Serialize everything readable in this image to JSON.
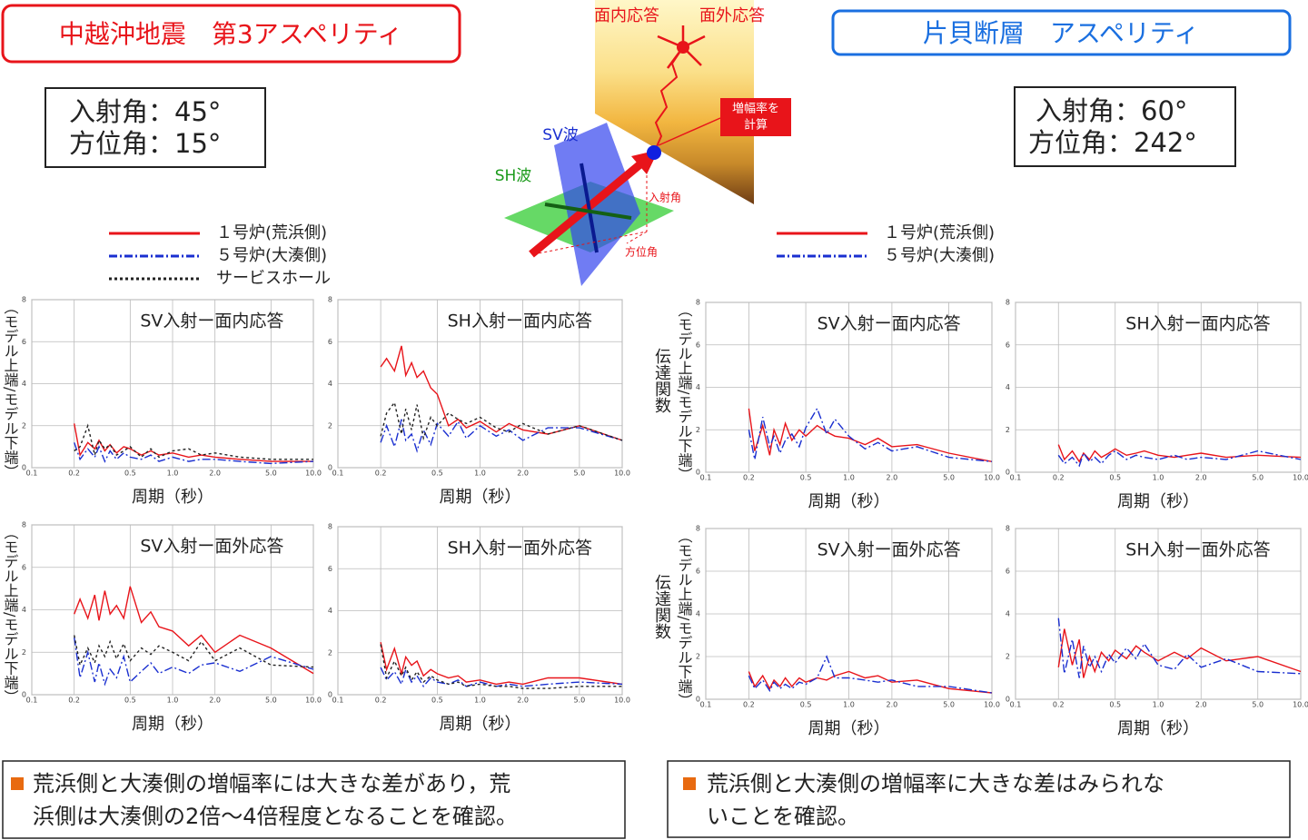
{
  "left": {
    "title": "中越沖地震　第3アスペリティ",
    "angles": [
      "入射角：45°",
      "方位角：15°"
    ],
    "legend": [
      {
        "name": "１号炉(荒浜側)",
        "color": "#e8141a",
        "style": "solid"
      },
      {
        "name": "５号炉(大湊側)",
        "color": "#1a2fd0",
        "style": "dashdot"
      },
      {
        "name": "サービスホール",
        "color": "#222222",
        "style": "dotted"
      }
    ],
    "note": [
      "荒浜側と大湊側の増幅率には大きな差があり，荒",
      "浜側は大湊側の2倍～4倍程度となることを確認。"
    ]
  },
  "right": {
    "title": "片貝断層　アスペリティ",
    "angles": [
      "入射角：60°",
      "方位角：242°"
    ],
    "legend": [
      {
        "name": "１号炉(荒浜側)",
        "color": "#e8141a",
        "style": "solid"
      },
      {
        "name": "５号炉(大湊側)",
        "color": "#1a2fd0",
        "style": "dashdot"
      }
    ],
    "note": [
      "荒浜側と大湊側の増幅率に大きな差はみられな",
      "いことを確認。"
    ]
  },
  "diagram": {
    "in_plane": "面内応答",
    "out_plane": "面外応答",
    "calc": [
      "増幅率を",
      "計算"
    ],
    "sv": "SV波",
    "sh": "SH波",
    "incidence": "入射角",
    "azimuth": "方位角"
  },
  "chart_data": [
    {
      "type": "line",
      "title": "SV入射ー面内応答",
      "xlabel": "周期（秒）",
      "ylabel": "（モデル上端/モデル下端）",
      "log_x": true,
      "grid": true,
      "xlim": [
        0.1,
        10
      ],
      "xticks": [
        0.1,
        0.2,
        0.5,
        {
          "value": 1,
          "label": "1.0"
        },
        {
          "value": 2,
          "label": "2.0"
        },
        {
          "value": 5,
          "label": "5.0"
        },
        {
          "value": 10,
          "label": "10.0"
        }
      ],
      "ylim": [
        0,
        8
      ],
      "yticks": [
        0,
        2,
        4,
        6,
        8
      ],
      "x": [
        0.2,
        0.22,
        0.25,
        0.28,
        0.3,
        0.33,
        0.36,
        0.4,
        0.45,
        0.5,
        0.6,
        0.7,
        0.8,
        1,
        1.3,
        1.6,
        2,
        3,
        5,
        10
      ],
      "series": [
        {
          "values": [
            2.1,
            0.6,
            1.2,
            0.9,
            1.3,
            0.8,
            1.1,
            0.7,
            1.0,
            0.9,
            0.6,
            0.8,
            0.6,
            0.7,
            0.5,
            0.6,
            0.5,
            0.4,
            0.3,
            0.3
          ]
        },
        {
          "values": [
            1.2,
            0.4,
            0.9,
            0.5,
            1.0,
            0.3,
            0.8,
            0.4,
            0.7,
            0.5,
            0.4,
            0.6,
            0.3,
            0.5,
            0.3,
            0.4,
            0.4,
            0.3,
            0.2,
            0.3
          ]
        },
        {
          "values": [
            0.8,
            1.0,
            2.0,
            0.6,
            1.3,
            0.9,
            1.1,
            0.6,
            0.8,
            1.0,
            0.5,
            0.9,
            0.5,
            0.8,
            0.9,
            0.6,
            0.7,
            0.5,
            0.4,
            0.4
          ]
        }
      ]
    },
    {
      "type": "line",
      "title": "SH入射ー面内応答",
      "xlabel": "周期（秒）",
      "log_x": true,
      "grid": true,
      "xlim": [
        0.1,
        10
      ],
      "xticks": [
        0.1,
        0.2,
        0.5,
        {
          "value": 1,
          "label": "1.0"
        },
        {
          "value": 2,
          "label": "2.0"
        },
        {
          "value": 5,
          "label": "5.0"
        },
        {
          "value": 10,
          "label": "10.0"
        }
      ],
      "ylim": [
        0,
        8
      ],
      "yticks": [
        0,
        2,
        4,
        6,
        8
      ],
      "x": [
        0.2,
        0.22,
        0.25,
        0.28,
        0.3,
        0.33,
        0.36,
        0.4,
        0.45,
        0.5,
        0.6,
        0.7,
        0.8,
        1,
        1.3,
        1.6,
        2,
        3,
        5,
        10
      ],
      "series": [
        {
          "values": [
            4.8,
            5.2,
            4.6,
            5.8,
            4.4,
            5.0,
            4.3,
            4.6,
            3.8,
            3.5,
            2.0,
            2.3,
            1.9,
            2.2,
            1.7,
            2.1,
            1.8,
            1.6,
            2.0,
            1.3
          ]
        },
        {
          "values": [
            1.2,
            2.0,
            1.0,
            2.3,
            1.3,
            1.6,
            0.8,
            1.8,
            1.1,
            2.1,
            1.5,
            2.2,
            1.4,
            2.0,
            1.5,
            1.8,
            1.3,
            1.9,
            1.9,
            1.3
          ]
        },
        {
          "values": [
            1.5,
            2.6,
            3.1,
            1.6,
            2.8,
            1.8,
            3.0,
            1.4,
            2.4,
            2.0,
            2.6,
            2.3,
            2.1,
            2.4,
            1.9,
            1.7,
            2.1,
            1.6,
            2.0,
            1.3
          ]
        }
      ]
    },
    {
      "type": "line",
      "title": "SV入射ー面外応答",
      "xlabel": "周期（秒）",
      "ylabel": "（モデル上端/モデル下端）",
      "log_x": true,
      "grid": true,
      "xlim": [
        0.1,
        10
      ],
      "xticks": [
        0.1,
        0.2,
        0.5,
        {
          "value": 1,
          "label": "1.0"
        },
        {
          "value": 2,
          "label": "2.0"
        },
        {
          "value": 5,
          "label": "5.0"
        },
        {
          "value": 10,
          "label": "10.0"
        }
      ],
      "ylim": [
        0,
        8
      ],
      "yticks": [
        0,
        2,
        4,
        6,
        8
      ],
      "x": [
        0.2,
        0.22,
        0.25,
        0.28,
        0.3,
        0.33,
        0.36,
        0.4,
        0.45,
        0.5,
        0.6,
        0.7,
        0.8,
        1,
        1.3,
        1.6,
        2,
        3,
        5,
        10
      ],
      "series": [
        {
          "values": [
            3.8,
            4.5,
            3.6,
            4.7,
            3.5,
            4.9,
            3.8,
            4.2,
            3.6,
            5.1,
            3.4,
            3.9,
            3.2,
            3.0,
            2.3,
            2.8,
            2.0,
            2.8,
            2.2,
            1.0
          ]
        },
        {
          "values": [
            2.7,
            0.8,
            2.0,
            0.6,
            1.5,
            0.5,
            1.2,
            0.8,
            1.8,
            0.6,
            1.1,
            1.5,
            1.0,
            1.3,
            1.0,
            1.4,
            1.5,
            1.1,
            1.8,
            1.2
          ]
        },
        {
          "values": [
            2.8,
            1.4,
            2.2,
            1.5,
            2.3,
            1.8,
            2.5,
            1.7,
            2.4,
            1.6,
            2.2,
            1.9,
            2.3,
            2.0,
            1.6,
            2.5,
            1.6,
            2.2,
            1.4,
            1.3
          ]
        }
      ]
    },
    {
      "type": "line",
      "title": "SH入射ー面外応答",
      "xlabel": "周期（秒）",
      "log_x": true,
      "grid": true,
      "xlim": [
        0.1,
        10
      ],
      "xticks": [
        0.1,
        0.2,
        0.5,
        {
          "value": 1,
          "label": "1.0"
        },
        {
          "value": 2,
          "label": "2.0"
        },
        {
          "value": 5,
          "label": "5.0"
        },
        {
          "value": 10,
          "label": "10.0"
        }
      ],
      "ylim": [
        0,
        8
      ],
      "yticks": [
        0,
        2,
        4,
        6,
        8
      ],
      "x": [
        0.2,
        0.22,
        0.25,
        0.28,
        0.3,
        0.33,
        0.36,
        0.4,
        0.45,
        0.5,
        0.6,
        0.7,
        0.8,
        1,
        1.3,
        1.6,
        2,
        3,
        5,
        10
      ],
      "series": [
        {
          "values": [
            2.5,
            1.2,
            2.2,
            1.0,
            1.8,
            1.4,
            1.6,
            0.9,
            1.2,
            1.0,
            0.8,
            0.9,
            0.6,
            0.7,
            0.5,
            0.6,
            0.5,
            0.8,
            0.8,
            0.5
          ]
        },
        {
          "values": [
            1.3,
            0.7,
            1.1,
            0.5,
            1.2,
            0.6,
            0.9,
            0.4,
            0.8,
            0.6,
            0.5,
            0.7,
            0.4,
            0.6,
            0.4,
            0.5,
            0.4,
            0.5,
            0.6,
            0.5
          ]
        },
        {
          "values": [
            2.4,
            0.8,
            1.6,
            0.9,
            1.3,
            0.7,
            1.1,
            0.6,
            0.9,
            0.7,
            0.5,
            0.6,
            0.4,
            0.5,
            0.4,
            0.4,
            0.3,
            0.3,
            0.4,
            0.4
          ]
        }
      ]
    },
    {
      "type": "line",
      "title": "SV入射ー面内応答",
      "xlabel": "周期（秒）",
      "ylabel": "（モデル上端/モデル下端）",
      "ylabel2": "伝達関数",
      "log_x": true,
      "grid": true,
      "xlim": [
        0.1,
        10
      ],
      "xticks": [
        0.1,
        0.2,
        0.5,
        {
          "value": 1,
          "label": "1.0"
        },
        {
          "value": 2,
          "label": "2.0"
        },
        {
          "value": 5,
          "label": "5.0"
        },
        {
          "value": 10,
          "label": "10.0"
        }
      ],
      "ylim": [
        0,
        8
      ],
      "yticks": [
        0,
        2,
        4,
        6,
        8
      ],
      "x": [
        0.2,
        0.22,
        0.25,
        0.28,
        0.3,
        0.33,
        0.36,
        0.4,
        0.45,
        0.5,
        0.6,
        0.7,
        0.8,
        1,
        1.3,
        1.6,
        2,
        3,
        5,
        10
      ],
      "series": [
        {
          "values": [
            3.0,
            1.0,
            2.2,
            0.8,
            2.0,
            1.3,
            2.3,
            1.5,
            2.0,
            1.7,
            2.2,
            1.9,
            1.7,
            1.6,
            1.3,
            1.6,
            1.2,
            1.3,
            0.9,
            0.5
          ]
        },
        {
          "values": [
            2.0,
            0.6,
            2.6,
            1.2,
            1.7,
            0.9,
            1.5,
            1.8,
            1.2,
            2.1,
            3.0,
            1.8,
            2.5,
            1.7,
            1.1,
            1.4,
            1.0,
            1.2,
            0.7,
            0.5
          ]
        }
      ]
    },
    {
      "type": "line",
      "title": "SH入射ー面内応答",
      "xlabel": "周期（秒）",
      "log_x": true,
      "grid": true,
      "xlim": [
        0.1,
        10
      ],
      "xticks": [
        0.1,
        0.2,
        0.5,
        {
          "value": 1,
          "label": "1.0"
        },
        {
          "value": 2,
          "label": "2.0"
        },
        {
          "value": 5,
          "label": "5.0"
        },
        {
          "value": 10,
          "label": "10.0"
        }
      ],
      "ylim": [
        0,
        8
      ],
      "yticks": [
        0,
        2,
        4,
        6,
        8
      ],
      "x": [
        0.2,
        0.22,
        0.25,
        0.28,
        0.3,
        0.33,
        0.36,
        0.4,
        0.45,
        0.5,
        0.6,
        0.7,
        0.8,
        1,
        1.3,
        1.6,
        2,
        3,
        5,
        10
      ],
      "series": [
        {
          "values": [
            1.3,
            0.6,
            1.0,
            0.5,
            0.9,
            0.6,
            1.0,
            0.7,
            0.9,
            1.1,
            0.8,
            0.9,
            1.0,
            0.8,
            0.7,
            0.8,
            0.9,
            0.7,
            0.8,
            0.7
          ]
        },
        {
          "values": [
            0.8,
            0.4,
            0.7,
            0.3,
            0.9,
            0.5,
            0.7,
            0.4,
            0.8,
            1.0,
            0.6,
            0.8,
            0.7,
            0.6,
            0.8,
            0.6,
            0.7,
            0.6,
            1.0,
            0.6
          ]
        }
      ]
    },
    {
      "type": "line",
      "title": "SV入射ー面外応答",
      "xlabel": "周期（秒）",
      "ylabel": "（モデル上端/モデル下端）",
      "ylabel2": "伝達関数",
      "log_x": true,
      "grid": true,
      "xlim": [
        0.1,
        10
      ],
      "xticks": [
        0.1,
        0.2,
        0.5,
        {
          "value": 1,
          "label": "1.0"
        },
        {
          "value": 2,
          "label": "2.0"
        },
        {
          "value": 5,
          "label": "5.0"
        },
        {
          "value": 10,
          "label": "10.0"
        }
      ],
      "ylim": [
        0,
        8
      ],
      "yticks": [
        0,
        2,
        4,
        6,
        8
      ],
      "x": [
        0.2,
        0.22,
        0.25,
        0.28,
        0.3,
        0.33,
        0.36,
        0.4,
        0.45,
        0.5,
        0.6,
        0.7,
        0.8,
        1,
        1.3,
        1.6,
        2,
        3,
        5,
        10
      ],
      "series": [
        {
          "values": [
            1.3,
            0.6,
            1.1,
            0.5,
            0.9,
            0.6,
            1.0,
            0.6,
            1.0,
            0.8,
            1.0,
            0.9,
            1.1,
            1.3,
            1.0,
            1.1,
            0.8,
            0.9,
            0.5,
            0.3
          ]
        },
        {
          "values": [
            1.1,
            0.5,
            0.9,
            0.4,
            0.8,
            0.5,
            0.7,
            0.5,
            0.8,
            0.7,
            1.0,
            2.0,
            1.0,
            1.0,
            0.9,
            0.8,
            0.9,
            0.6,
            0.6,
            0.3
          ]
        }
      ]
    },
    {
      "type": "line",
      "title": "SH入射ー面外応答",
      "xlabel": "周期（秒）",
      "log_x": true,
      "grid": true,
      "xlim": [
        0.1,
        10
      ],
      "xticks": [
        0.1,
        0.2,
        0.5,
        {
          "value": 1,
          "label": "1.0"
        },
        {
          "value": 2,
          "label": "2.0"
        },
        {
          "value": 5,
          "label": "5.0"
        },
        {
          "value": 10,
          "label": "10.0"
        }
      ],
      "ylim": [
        0,
        8
      ],
      "yticks": [
        0,
        2,
        4,
        6,
        8
      ],
      "x": [
        0.2,
        0.22,
        0.25,
        0.28,
        0.3,
        0.33,
        0.36,
        0.4,
        0.45,
        0.5,
        0.6,
        0.7,
        0.8,
        1,
        1.3,
        1.6,
        2,
        3,
        5,
        10
      ],
      "series": [
        {
          "values": [
            1.5,
            3.3,
            1.6,
            2.8,
            1.0,
            2.0,
            1.3,
            2.2,
            1.8,
            2.3,
            1.9,
            2.5,
            2.2,
            1.8,
            2.2,
            1.9,
            2.4,
            1.8,
            2.0,
            1.3
          ]
        },
        {
          "values": [
            3.8,
            1.2,
            2.8,
            1.0,
            2.5,
            1.5,
            2.0,
            1.3,
            2.1,
            1.7,
            2.4,
            1.9,
            2.6,
            1.6,
            1.4,
            2.1,
            1.5,
            1.9,
            1.3,
            1.2
          ]
        }
      ]
    }
  ]
}
